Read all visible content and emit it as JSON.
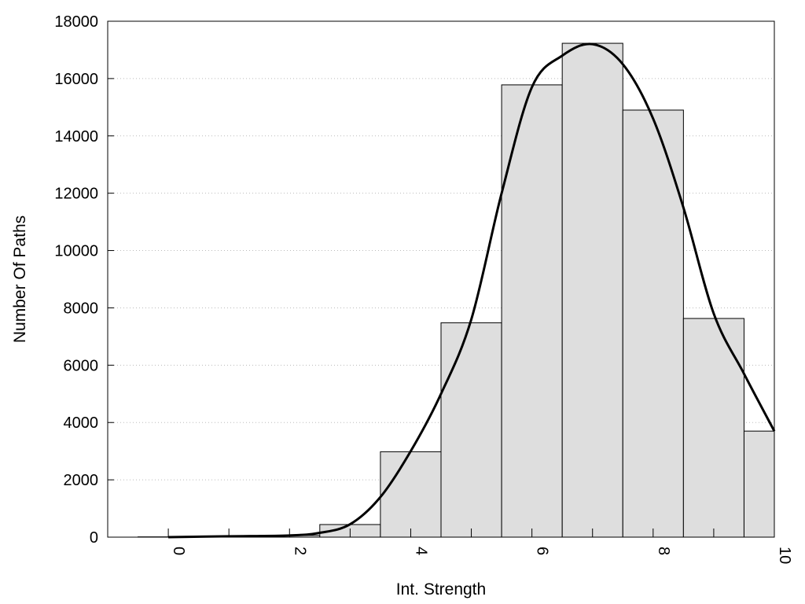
{
  "chart_data": {
    "type": "bar",
    "title": "",
    "xlabel": "Int. Strength",
    "ylabel": "Number Of Paths",
    "xlim": [
      -1,
      10
    ],
    "ylim": [
      0,
      18000
    ],
    "xticks": [
      0,
      2,
      4,
      6,
      8,
      10
    ],
    "yticks": [
      0,
      2000,
      4000,
      6000,
      8000,
      10000,
      12000,
      14000,
      16000,
      18000
    ],
    "grid": "horizontal dotted",
    "bar_color": "#dedede",
    "bar_width": 1,
    "bars": {
      "x": [
        0,
        1,
        2,
        3,
        4,
        5,
        6,
        7,
        8,
        9,
        10
      ],
      "values": [
        10,
        20,
        60,
        440,
        2980,
        7480,
        15780,
        17230,
        14900,
        7630,
        3700
      ]
    },
    "curve": {
      "x": [
        0,
        1,
        2,
        2.5,
        3,
        3.5,
        4,
        4.5,
        5,
        5.5,
        6,
        6.5,
        7,
        7.5,
        8,
        8.5,
        9,
        9.5,
        10
      ],
      "y": [
        0,
        30,
        60,
        150,
        450,
        1400,
        3000,
        5000,
        7600,
        12000,
        15700,
        16800,
        17200,
        16500,
        14600,
        11500,
        7800,
        5700,
        3700
      ]
    }
  }
}
